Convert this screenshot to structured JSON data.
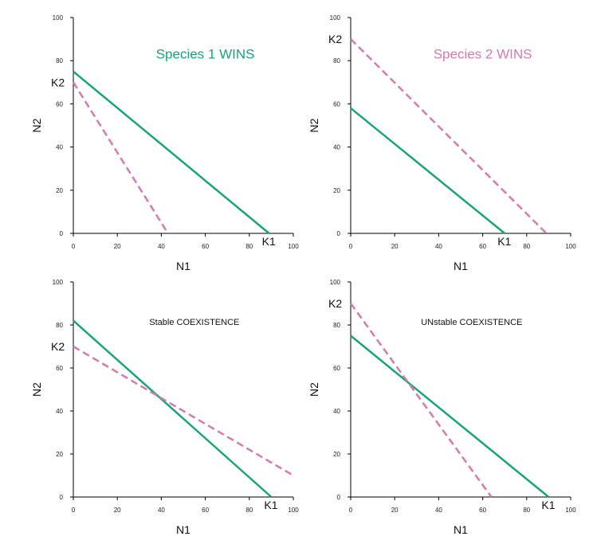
{
  "colors": {
    "species1": "#1aa37a",
    "species2": "#d67aac",
    "axis": "#000000"
  },
  "chart_data": [
    {
      "type": "line",
      "xlabel": "N1",
      "ylabel": "N2",
      "xlim": [
        0,
        100
      ],
      "ylim": [
        0,
        100
      ],
      "xticks": [
        "0",
        "20",
        "40",
        "60",
        "80",
        "100"
      ],
      "yticks": [
        "0",
        "20",
        "40",
        "60",
        "80",
        "100"
      ],
      "grid": false,
      "annotation": {
        "text": "Species 1 WINS",
        "x": 60,
        "y": 81,
        "style": "large",
        "color": "#1aa37a"
      },
      "series": [
        {
          "style": "solid",
          "color": "#1aa37a",
          "x": [
            0,
            89
          ],
          "y": [
            75,
            0
          ]
        },
        {
          "style": "dashed",
          "color": "#d67aac",
          "x": [
            0,
            43
          ],
          "y": [
            70,
            0
          ]
        }
      ],
      "k_labels": [
        {
          "text": "K2",
          "axis": "y",
          "value": 70
        },
        {
          "text": "K1",
          "axis": "x",
          "value": 89
        }
      ]
    },
    {
      "type": "line",
      "xlabel": "N1",
      "ylabel": "N2",
      "xlim": [
        0,
        100
      ],
      "ylim": [
        0,
        100
      ],
      "xticks": [
        "0",
        "20",
        "40",
        "60",
        "80",
        "100"
      ],
      "yticks": [
        "0",
        "20",
        "40",
        "60",
        "80",
        "100"
      ],
      "grid": false,
      "annotation": {
        "text": "Species 2 WINS",
        "x": 60,
        "y": 81,
        "style": "large",
        "color": "#d67aac"
      },
      "series": [
        {
          "style": "solid",
          "color": "#1aa37a",
          "x": [
            0,
            70
          ],
          "y": [
            58,
            0
          ]
        },
        {
          "style": "dashed",
          "color": "#d67aac",
          "x": [
            0,
            89
          ],
          "y": [
            90,
            0
          ]
        }
      ],
      "k_labels": [
        {
          "text": "K2",
          "axis": "y",
          "value": 90
        },
        {
          "text": "K1",
          "axis": "x",
          "value": 70
        }
      ]
    },
    {
      "type": "line",
      "xlabel": "N1",
      "ylabel": "N2",
      "xlim": [
        0,
        100
      ],
      "ylim": [
        0,
        100
      ],
      "xticks": [
        "0",
        "20",
        "40",
        "60",
        "80",
        "100"
      ],
      "yticks": [
        "0",
        "20",
        "40",
        "60",
        "80",
        "100"
      ],
      "grid": false,
      "annotation": {
        "text": "Stable COEXISTENCE",
        "x": 55,
        "y": 80,
        "style": "small",
        "color": "#111111"
      },
      "series": [
        {
          "style": "solid",
          "color": "#1aa37a",
          "x": [
            0,
            90
          ],
          "y": [
            82,
            0
          ]
        },
        {
          "style": "dashed",
          "color": "#d67aac",
          "x": [
            0,
            100
          ],
          "y": [
            70,
            10
          ]
        }
      ],
      "k_labels": [
        {
          "text": "K2",
          "axis": "y",
          "value": 70
        },
        {
          "text": "K1",
          "axis": "x",
          "value": 90
        }
      ]
    },
    {
      "type": "line",
      "xlabel": "N1",
      "ylabel": "N2",
      "xlim": [
        0,
        100
      ],
      "ylim": [
        0,
        100
      ],
      "xticks": [
        "0",
        "20",
        "40",
        "60",
        "80",
        "100"
      ],
      "yticks": [
        "0",
        "20",
        "40",
        "60",
        "80",
        "100"
      ],
      "grid": false,
      "annotation": {
        "text": "UNstable COEXISTENCE",
        "x": 55,
        "y": 80,
        "style": "small",
        "color": "#111111"
      },
      "series": [
        {
          "style": "solid",
          "color": "#1aa37a",
          "x": [
            0,
            90
          ],
          "y": [
            75,
            0
          ]
        },
        {
          "style": "dashed",
          "color": "#d67aac",
          "x": [
            0,
            64
          ],
          "y": [
            90,
            0
          ]
        }
      ],
      "k_labels": [
        {
          "text": "K2",
          "axis": "y",
          "value": 90
        },
        {
          "text": "K1",
          "axis": "x",
          "value": 90
        }
      ]
    }
  ]
}
